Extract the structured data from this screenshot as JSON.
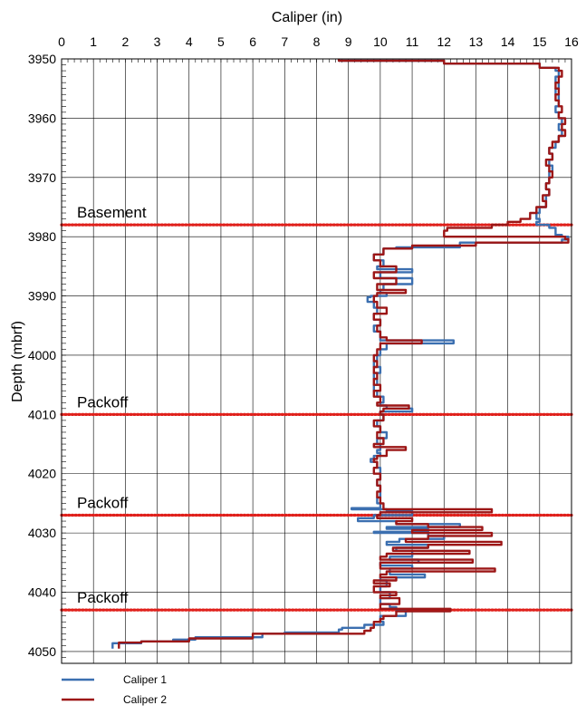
{
  "chart_data": {
    "type": "line",
    "orientation": "depth-vertical",
    "xlabel": "Caliper (in)",
    "ylabel": "Depth (mbrf)",
    "xlim": [
      0,
      16
    ],
    "ylim": [
      3950,
      4052
    ],
    "x_ticks": [
      "0",
      "1",
      "2",
      "3",
      "4",
      "5",
      "6",
      "7",
      "8",
      "9",
      "10",
      "11",
      "12",
      "13",
      "14",
      "15",
      "16"
    ],
    "y_ticks": [
      "3950",
      "3960",
      "3970",
      "3980",
      "3990",
      "4000",
      "4010",
      "4020",
      "4030",
      "4040",
      "4050"
    ],
    "grid": true,
    "legend_placement": "bottom-left",
    "annotations": [
      {
        "label": "Basement",
        "depth": 3978,
        "color": "#e0201b"
      },
      {
        "label": "Packoff",
        "depth": 4010,
        "color": "#e0201b"
      },
      {
        "label": "Packoff",
        "depth": 4027,
        "color": "#e0201b"
      },
      {
        "label": "Packoff",
        "depth": 4043,
        "color": "#e0201b"
      }
    ],
    "series": [
      {
        "name": "Caliper 1",
        "color": "#3b6fb0",
        "points": [
          [
            8.7,
            3950
          ],
          [
            12.0,
            3950.3
          ],
          [
            15.0,
            3950.8
          ],
          [
            15.5,
            3951.5
          ],
          [
            15.6,
            3952
          ],
          [
            15.5,
            3953
          ],
          [
            15.6,
            3954
          ],
          [
            15.5,
            3955
          ],
          [
            15.6,
            3956
          ],
          [
            15.6,
            3957
          ],
          [
            15.5,
            3958
          ],
          [
            15.6,
            3959
          ],
          [
            15.7,
            3960
          ],
          [
            15.6,
            3961
          ],
          [
            15.7,
            3962
          ],
          [
            15.6,
            3963
          ],
          [
            15.5,
            3964
          ],
          [
            15.3,
            3965
          ],
          [
            15.4,
            3966
          ],
          [
            15.3,
            3967
          ],
          [
            15.4,
            3968
          ],
          [
            15.3,
            3969
          ],
          [
            15.3,
            3970
          ],
          [
            15.2,
            3971
          ],
          [
            15.3,
            3972
          ],
          [
            15.2,
            3973
          ],
          [
            15.2,
            3974
          ],
          [
            15.0,
            3975
          ],
          [
            14.9,
            3976
          ],
          [
            15.0,
            3977
          ],
          [
            14.9,
            3977.5
          ],
          [
            15.3,
            3978
          ],
          [
            15.5,
            3978.5
          ],
          [
            15.5,
            3979
          ],
          [
            15.7,
            3979.7
          ],
          [
            15.9,
            3980
          ],
          [
            15.7,
            3980.5
          ],
          [
            12.5,
            3981
          ],
          [
            10.5,
            3981.8
          ],
          [
            10.1,
            3982
          ],
          [
            9.8,
            3983
          ],
          [
            10.1,
            3984
          ],
          [
            9.9,
            3985
          ],
          [
            11.0,
            3985.5
          ],
          [
            10.0,
            3986
          ],
          [
            11.0,
            3987
          ],
          [
            10.1,
            3988
          ],
          [
            10.0,
            3989
          ],
          [
            10.2,
            3989.5
          ],
          [
            9.7,
            3990
          ],
          [
            9.6,
            3990.2
          ],
          [
            9.8,
            3991
          ],
          [
            9.9,
            3992
          ],
          [
            9.8,
            3993
          ],
          [
            10.0,
            3994
          ],
          [
            9.8,
            3995
          ],
          [
            10.0,
            3996
          ],
          [
            12.3,
            3997.5
          ],
          [
            10.2,
            3998
          ],
          [
            10.0,
            3999
          ],
          [
            9.9,
            4000
          ],
          [
            9.8,
            4001
          ],
          [
            10.0,
            4002
          ],
          [
            9.8,
            4003
          ],
          [
            9.9,
            4004
          ],
          [
            9.8,
            4005
          ],
          [
            9.9,
            4006
          ],
          [
            10.1,
            4007
          ],
          [
            10.0,
            4008
          ],
          [
            10.2,
            4008.5
          ],
          [
            11.0,
            4009
          ],
          [
            10.0,
            4009.5
          ],
          [
            10.1,
            4010
          ],
          [
            9.9,
            4011
          ],
          [
            10.0,
            4012
          ],
          [
            10.2,
            4013
          ],
          [
            9.9,
            4014
          ],
          [
            10.0,
            4015
          ],
          [
            9.9,
            4016
          ],
          [
            10.0,
            4016.5
          ],
          [
            9.8,
            4017
          ],
          [
            9.7,
            4017.5
          ],
          [
            9.9,
            4018
          ],
          [
            10.0,
            4019
          ],
          [
            10.0,
            4020
          ],
          [
            9.9,
            4021
          ],
          [
            10.0,
            4022
          ],
          [
            10.0,
            4023
          ],
          [
            9.9,
            4024
          ],
          [
            10.0,
            4025
          ],
          [
            9.1,
            4025.8
          ],
          [
            10.2,
            4026
          ],
          [
            11.0,
            4026.3
          ],
          [
            9.8,
            4027
          ],
          [
            9.3,
            4027.5
          ],
          [
            10.5,
            4028
          ],
          [
            12.5,
            4028.5
          ],
          [
            10.2,
            4029
          ],
          [
            11.5,
            4029.3
          ],
          [
            9.8,
            4029.8
          ],
          [
            11.5,
            4030
          ],
          [
            12.0,
            4030.5
          ],
          [
            10.6,
            4031
          ],
          [
            10.2,
            4031.5
          ],
          [
            11.5,
            4032
          ],
          [
            10.5,
            4032.5
          ],
          [
            11.0,
            4033
          ],
          [
            10.3,
            4034
          ],
          [
            11.2,
            4034.5
          ],
          [
            10.0,
            4035
          ],
          [
            11.0,
            4035.5
          ],
          [
            10.3,
            4036
          ],
          [
            11.4,
            4037
          ],
          [
            10.0,
            4037.5
          ],
          [
            10.2,
            4038
          ],
          [
            10.0,
            4039
          ],
          [
            10.3,
            4040
          ],
          [
            10.0,
            4041
          ],
          [
            10.3,
            4042
          ],
          [
            10.5,
            4042.5
          ],
          [
            10.8,
            4043
          ],
          [
            10.0,
            4044
          ],
          [
            10.1,
            4045
          ],
          [
            9.5,
            4045.5
          ],
          [
            8.8,
            4046
          ],
          [
            8.7,
            4046.3
          ],
          [
            7.0,
            4046.8
          ],
          [
            6.3,
            4047
          ],
          [
            4.2,
            4047.6
          ],
          [
            3.5,
            4048
          ],
          [
            2.5,
            4048.3
          ],
          [
            1.6,
            4048.6
          ],
          [
            1.6,
            4049.5
          ]
        ]
      },
      {
        "name": "Caliper 2",
        "color": "#9c1616",
        "points": [
          [
            8.7,
            3950
          ],
          [
            12.0,
            3950.3
          ],
          [
            15.0,
            3950.8
          ],
          [
            15.6,
            3951.5
          ],
          [
            15.7,
            3952
          ],
          [
            15.6,
            3953
          ],
          [
            15.5,
            3954
          ],
          [
            15.6,
            3955
          ],
          [
            15.5,
            3956
          ],
          [
            15.6,
            3957
          ],
          [
            15.7,
            3958
          ],
          [
            15.6,
            3959
          ],
          [
            15.8,
            3960
          ],
          [
            15.7,
            3961
          ],
          [
            15.8,
            3962
          ],
          [
            15.6,
            3963
          ],
          [
            15.4,
            3964
          ],
          [
            15.3,
            3965
          ],
          [
            15.4,
            3966
          ],
          [
            15.2,
            3967
          ],
          [
            15.3,
            3968
          ],
          [
            15.4,
            3969
          ],
          [
            15.3,
            3970
          ],
          [
            15.2,
            3971
          ],
          [
            15.3,
            3972
          ],
          [
            15.1,
            3973
          ],
          [
            15.2,
            3974
          ],
          [
            14.9,
            3975
          ],
          [
            14.7,
            3976
          ],
          [
            14.4,
            3977
          ],
          [
            14.0,
            3977.5
          ],
          [
            13.5,
            3978
          ],
          [
            12.1,
            3978.5
          ],
          [
            12.0,
            3979
          ],
          [
            15.8,
            3980
          ],
          [
            15.9,
            3980.4
          ],
          [
            13.0,
            3981
          ],
          [
            11.0,
            3981.5
          ],
          [
            10.1,
            3982
          ],
          [
            9.8,
            3983
          ],
          [
            10.0,
            3984
          ],
          [
            10.5,
            3985
          ],
          [
            9.8,
            3986
          ],
          [
            10.5,
            3987
          ],
          [
            9.9,
            3988
          ],
          [
            10.8,
            3989
          ],
          [
            9.9,
            3989.5
          ],
          [
            9.8,
            3990
          ],
          [
            9.9,
            3991
          ],
          [
            10.2,
            3992
          ],
          [
            9.8,
            3993
          ],
          [
            10.0,
            3994
          ],
          [
            9.9,
            3995
          ],
          [
            10.0,
            3996
          ],
          [
            10.2,
            3997
          ],
          [
            11.3,
            3997.5
          ],
          [
            10.0,
            3998
          ],
          [
            9.9,
            3999
          ],
          [
            9.8,
            4000
          ],
          [
            9.9,
            4001
          ],
          [
            9.8,
            4002
          ],
          [
            9.9,
            4003
          ],
          [
            9.8,
            4004
          ],
          [
            10.0,
            4005
          ],
          [
            9.8,
            4006
          ],
          [
            10.0,
            4007
          ],
          [
            9.9,
            4008
          ],
          [
            10.9,
            4008.5
          ],
          [
            10.1,
            4009
          ],
          [
            10.0,
            4009.5
          ],
          [
            10.1,
            4010
          ],
          [
            9.8,
            4011
          ],
          [
            10.0,
            4012
          ],
          [
            9.9,
            4013
          ],
          [
            10.1,
            4014
          ],
          [
            9.8,
            4015
          ],
          [
            10.8,
            4015.5
          ],
          [
            10.2,
            4016
          ],
          [
            9.9,
            4017
          ],
          [
            9.8,
            4017.5
          ],
          [
            9.9,
            4018
          ],
          [
            9.8,
            4019
          ],
          [
            10.0,
            4020
          ],
          [
            9.9,
            4021
          ],
          [
            10.0,
            4022
          ],
          [
            9.9,
            4023
          ],
          [
            10.0,
            4024
          ],
          [
            10.1,
            4025
          ],
          [
            13.5,
            4026
          ],
          [
            10.0,
            4026.5
          ],
          [
            9.9,
            4027
          ],
          [
            11.0,
            4027.5
          ],
          [
            10.5,
            4028
          ],
          [
            11.5,
            4028.5
          ],
          [
            13.2,
            4029
          ],
          [
            11.0,
            4029.5
          ],
          [
            13.5,
            4030
          ],
          [
            11.5,
            4030.5
          ],
          [
            10.8,
            4031
          ],
          [
            13.8,
            4031.5
          ],
          [
            11.5,
            4032
          ],
          [
            10.4,
            4032.5
          ],
          [
            12.8,
            4033
          ],
          [
            10.2,
            4033.5
          ],
          [
            10.0,
            4034
          ],
          [
            12.9,
            4034.5
          ],
          [
            10.0,
            4035
          ],
          [
            13.6,
            4036
          ],
          [
            10.2,
            4036.5
          ],
          [
            10.0,
            4037
          ],
          [
            10.5,
            4037.5
          ],
          [
            9.8,
            4038
          ],
          [
            10.3,
            4038.5
          ],
          [
            9.8,
            4039
          ],
          [
            10.5,
            4040
          ],
          [
            10.0,
            4040.5
          ],
          [
            10.6,
            4041
          ],
          [
            10.0,
            4042
          ],
          [
            12.2,
            4042.8
          ],
          [
            10.5,
            4043.2
          ],
          [
            10.1,
            4044
          ],
          [
            10.0,
            4044.5
          ],
          [
            9.8,
            4045
          ],
          [
            9.7,
            4046
          ],
          [
            9.5,
            4046.5
          ],
          [
            6.0,
            4047
          ],
          [
            4.0,
            4047.8
          ],
          [
            2.5,
            4048.3
          ],
          [
            1.8,
            4048.5
          ],
          [
            1.8,
            4049.5
          ]
        ]
      }
    ]
  }
}
